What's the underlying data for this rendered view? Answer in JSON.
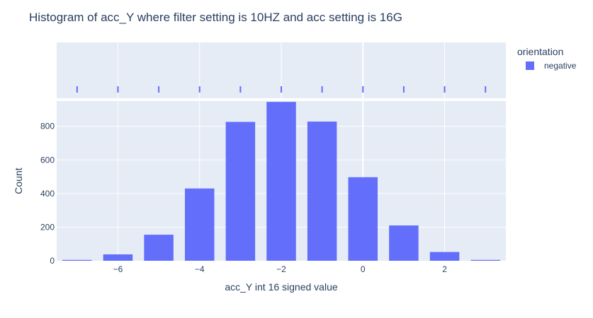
{
  "chart_data": {
    "type": "bar",
    "title": "Histogram of acc_Y where filter setting is 10HZ and acc setting is 16G",
    "xlabel": "acc_Y int 16 signed value",
    "ylabel": "Count",
    "x": [
      -7,
      -6,
      -5,
      -4,
      -3,
      -2,
      -1,
      0,
      1,
      2,
      3
    ],
    "values": [
      5,
      38,
      155,
      430,
      826,
      945,
      828,
      497,
      210,
      52,
      5
    ],
    "series": [
      {
        "name": "negative",
        "values": [
          5,
          38,
          155,
          430,
          826,
          945,
          828,
          497,
          210,
          52,
          5
        ]
      }
    ],
    "xlim": [
      -7.5,
      3.5
    ],
    "ylim": [
      0,
      950
    ],
    "xticks": [
      -6,
      -4,
      -2,
      0,
      2
    ],
    "xtick_labels": [
      "−6",
      "−4",
      "−2",
      "0",
      "2"
    ],
    "yticks": [
      0,
      200,
      400,
      600,
      800
    ],
    "ytick_labels": [
      "0",
      "200",
      "400",
      "600",
      "800"
    ],
    "marginal_rug_x": [
      -7,
      -6,
      -5,
      -4,
      -3,
      -2,
      -1,
      0,
      1,
      2,
      3
    ],
    "legend_title": "orientation",
    "legend_position": "top-right",
    "grid": true,
    "colors": {
      "bar": "#636efa",
      "plot_bg": "#e5ecf6",
      "grid": "#ffffff",
      "text": "#2a3f5f"
    }
  }
}
